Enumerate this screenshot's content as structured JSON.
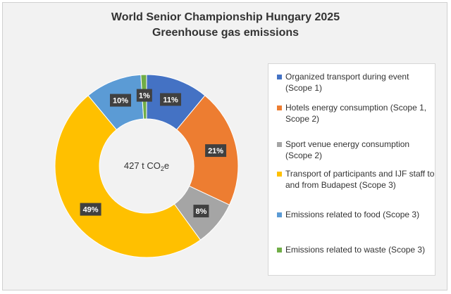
{
  "chart_data": {
    "type": "pie",
    "title": "World Senior Championship Hungary 2025",
    "subtitle": "Greenhouse gas emissions",
    "center_label": "427 t CO",
    "center_label_subscript": "2",
    "center_label_suffix": "e",
    "slices": [
      {
        "label": "Organized transport during event (Scope 1)",
        "value": 11,
        "display": "11%",
        "color": "#4472C4"
      },
      {
        "label": "Hotels energy consumption (Scope 1, Scope 2)",
        "value": 21,
        "display": "21%",
        "color": "#ED7D31"
      },
      {
        "label": "Sport venue energy consumption (Scope 2)",
        "value": 8,
        "display": "8%",
        "color": "#A5A5A5"
      },
      {
        "label": "Transport of participants and IJF staff to and from Budapest (Scope 3)",
        "value": 49,
        "display": "49%",
        "color": "#FFC000"
      },
      {
        "label": "Emissions related to food (Scope 3)",
        "value": 10,
        "display": "10%",
        "color": "#5B9BD5"
      },
      {
        "label": "Emissions related to waste (Scope 3)",
        "value": 1,
        "display": "1%",
        "color": "#70AD47"
      }
    ],
    "legend_position": "right"
  }
}
